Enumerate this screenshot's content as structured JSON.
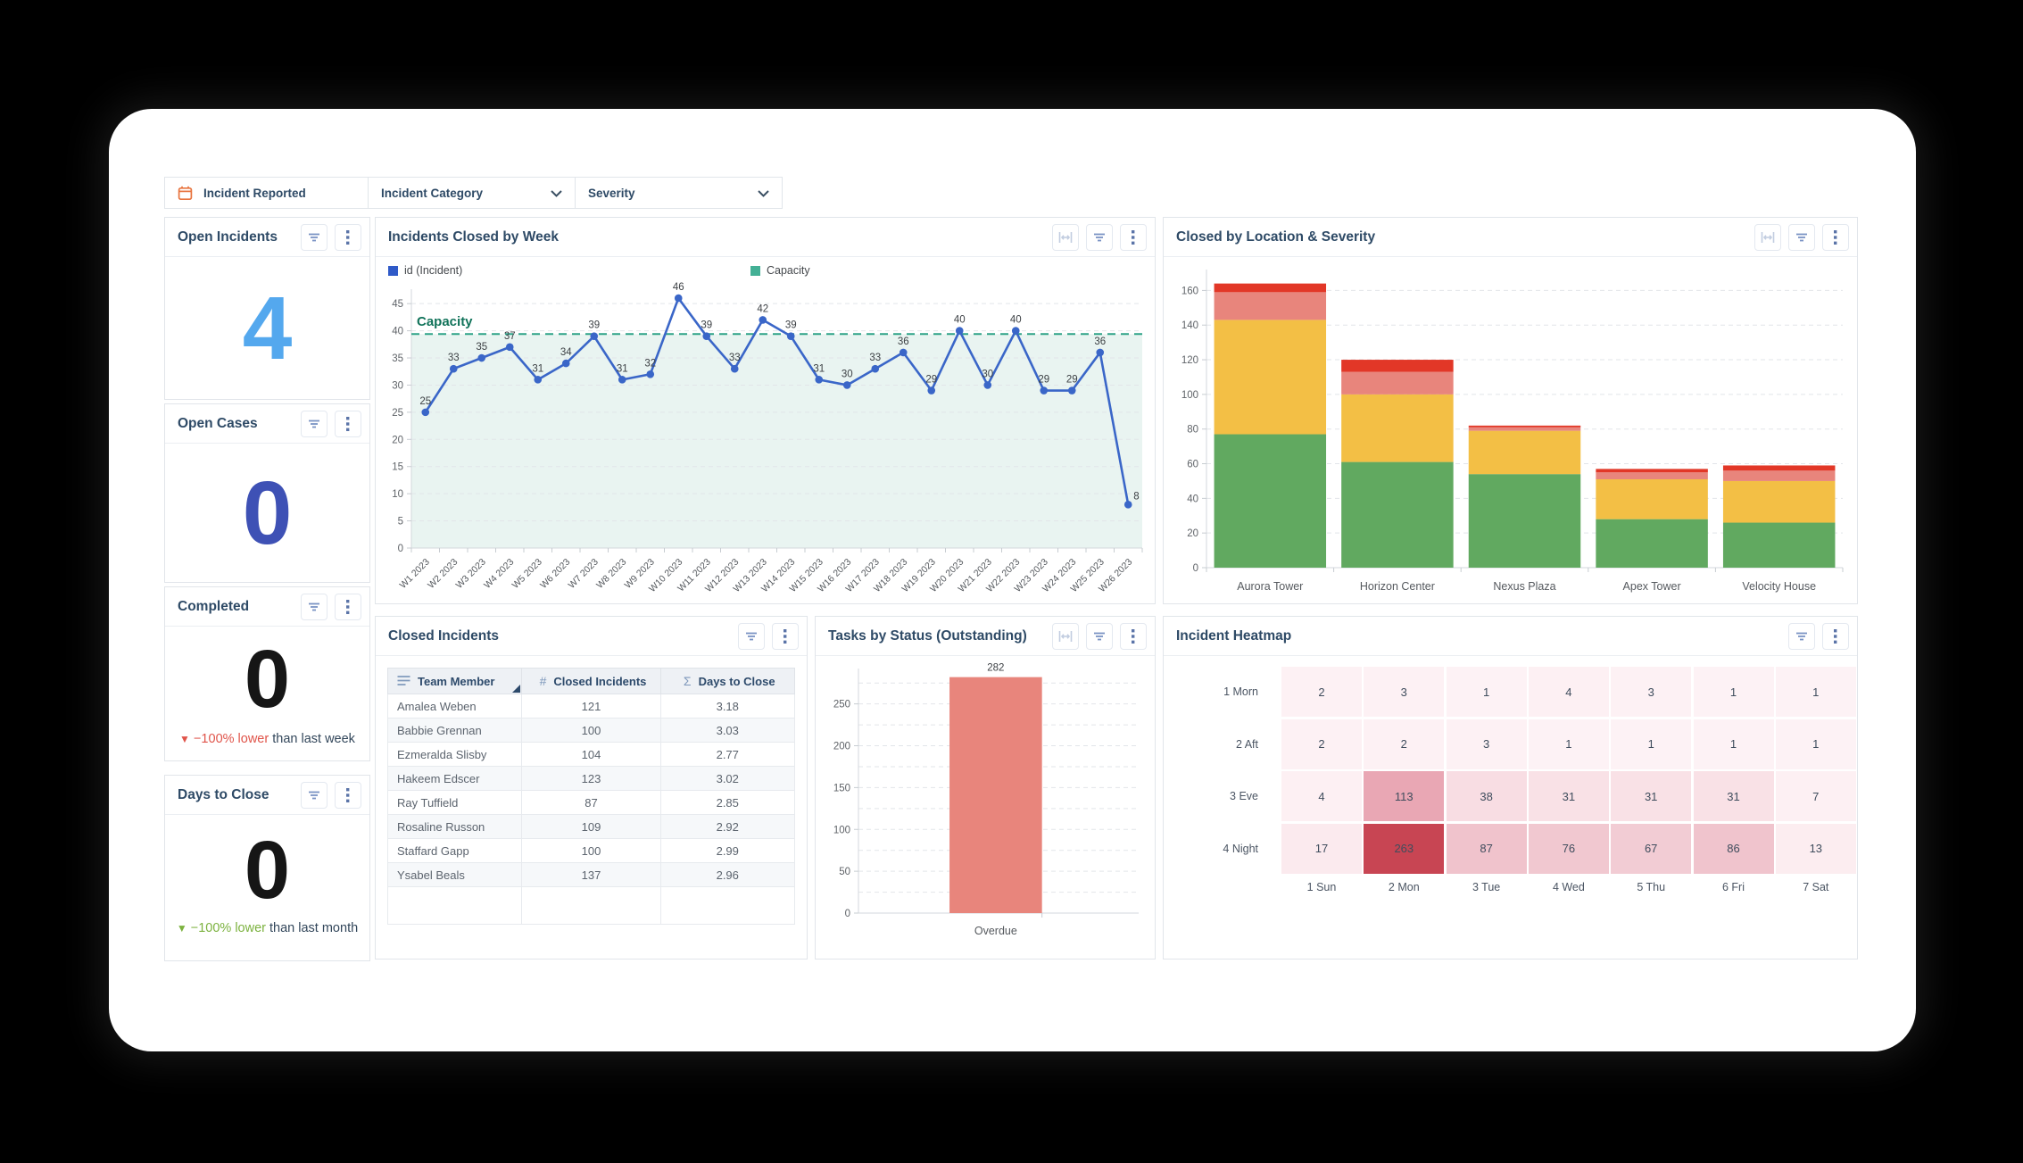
{
  "filters": {
    "incident_reported": "Incident Reported",
    "incident_category": "Incident Category",
    "severity": "Severity"
  },
  "kpis": [
    {
      "title": "Open Incidents",
      "value": "4",
      "value_color": "#54a8ee"
    },
    {
      "title": "Open Cases",
      "value": "0",
      "value_color": "#3e51b5"
    },
    {
      "title": "Completed",
      "value": "0",
      "value_color": "#161616",
      "delta": {
        "arrow": "▼",
        "text": "−100% lower",
        "suffix": "than last week",
        "color": "#e0544a"
      }
    },
    {
      "title": "Days to Close",
      "value": "0",
      "value_color": "#161616",
      "delta": {
        "arrow": "▼",
        "text": "−100% lower",
        "suffix": "than last month",
        "color": "#7cb23f"
      }
    }
  ],
  "chart_data": [
    {
      "id": "incidents_closed_by_week",
      "type": "line",
      "title": "Incidents Closed by Week",
      "categories": [
        "W1 2023",
        "W2 2023",
        "W3 2023",
        "W4 2023",
        "W5 2023",
        "W6 2023",
        "W7 2023",
        "W8 2023",
        "W9 2023",
        "W10 2023",
        "W11 2023",
        "W12 2023",
        "W13 2023",
        "W14 2023",
        "W15 2023",
        "W16 2023",
        "W17 2023",
        "W18 2023",
        "W19 2023",
        "W20 2023",
        "W21 2023",
        "W22 2023",
        "W23 2023",
        "W24 2023",
        "W25 2023",
        "W26 2023"
      ],
      "values": [
        25,
        33,
        35,
        37,
        31,
        34,
        39,
        31,
        32,
        46,
        39,
        33,
        42,
        39,
        31,
        30,
        33,
        36,
        29,
        40,
        30,
        40,
        29,
        29,
        36,
        8
      ],
      "series_name": "id (Incident)",
      "capacity": 39.4,
      "capacity_label": "Capacity",
      "ylim": [
        0,
        45
      ],
      "ytick_step": 5,
      "scale_max": 47,
      "grid": true,
      "legend_position": "top",
      "legend": [
        {
          "label": "id (Incident)",
          "color": "#2f5ac8"
        },
        {
          "label": "Capacity",
          "color": "#43b095"
        }
      ],
      "line_color": "#3a66c8",
      "capacity_color": "#2ea287",
      "capacity_label_color": "#11735a",
      "band_fill": "#e9f4f1"
    },
    {
      "id": "closed_by_location_severity",
      "type": "bar-stacked",
      "title": "Closed by Location & Severity",
      "categories": [
        "Aurora Tower",
        "Horizon Center",
        "Nexus Plaza",
        "Apex Tower",
        "Velocity House"
      ],
      "series": [
        {
          "name": "severity-low",
          "color": "#61a960",
          "values": [
            77,
            61,
            54,
            28,
            26
          ]
        },
        {
          "name": "severity-medium",
          "color": "#f3bf45",
          "values": [
            66,
            39,
            25,
            23,
            24
          ]
        },
        {
          "name": "severity-high",
          "color": "#e8857c",
          "values": [
            16,
            13,
            2,
            4,
            6
          ]
        },
        {
          "name": "severity-critical",
          "color": "#e23727",
          "values": [
            5,
            7,
            1,
            2,
            3
          ]
        }
      ],
      "ylim": [
        0,
        160
      ],
      "ytick_step": 20,
      "scale_max": 170,
      "grid": true
    },
    {
      "id": "tasks_by_status",
      "type": "bar",
      "title": "Tasks by Status (Outstanding)",
      "categories": [
        "Overdue"
      ],
      "values": [
        282
      ],
      "bar_color": "#e8857c",
      "ylim": [
        0,
        250
      ],
      "ytick_step": 50,
      "minor_step": 25,
      "scale_max": 288,
      "grid": true
    },
    {
      "id": "incident_heatmap",
      "type": "heatmap",
      "title": "Incident Heatmap",
      "rows": [
        "1 Morn",
        "2 Aft",
        "3 Eve",
        "4 Night"
      ],
      "cols": [
        "1 Sun",
        "2 Mon",
        "3 Tue",
        "4 Wed",
        "5 Thu",
        "6 Fri",
        "7 Sat"
      ],
      "values": [
        [
          2,
          3,
          1,
          4,
          3,
          1,
          1
        ],
        [
          2,
          2,
          3,
          1,
          1,
          1,
          1
        ],
        [
          4,
          113,
          38,
          31,
          31,
          31,
          7
        ],
        [
          17,
          263,
          87,
          76,
          67,
          86,
          13
        ]
      ],
      "cell_colors": [
        [
          "#fdf1f4",
          "#fdf1f4",
          "#fdf2f5",
          "#fdf0f3",
          "#fdf1f4",
          "#fdf2f5",
          "#fdf2f5"
        ],
        [
          "#fdf1f4",
          "#fdf1f4",
          "#fdf1f4",
          "#fdf2f5",
          "#fdf2f5",
          "#fdf2f5",
          "#fdf2f5"
        ],
        [
          "#fdf0f3",
          "#e9a7b4",
          "#f8dde3",
          "#f9e1e6",
          "#f9e1e6",
          "#f9e1e6",
          "#fdf0f3"
        ],
        [
          "#fbeaee",
          "#c84553",
          "#f0c3cc",
          "#f1c8d0",
          "#f2ccd4",
          "#f0c4cd",
          "#fcedf0"
        ]
      ]
    },
    {
      "id": "closed_incidents",
      "type": "table",
      "title": "Closed Incidents",
      "columns": [
        {
          "label": "Team Member",
          "icon": "text-align-icon",
          "glyph": ""
        },
        {
          "label": "Closed Incidents",
          "icon": "hash-icon",
          "glyph": "#"
        },
        {
          "label": "Days to Close",
          "icon": "sigma-icon",
          "glyph": "Σ"
        }
      ],
      "sorted_column": 0,
      "sort_direction": "asc",
      "rows": [
        [
          "Amalea Weben",
          "121",
          "3.18"
        ],
        [
          "Babbie Grennan",
          "100",
          "3.03"
        ],
        [
          "Ezmeralda Slisby",
          "104",
          "2.77"
        ],
        [
          "Hakeem Edscer",
          "123",
          "3.02"
        ],
        [
          "Ray Tuffield",
          "87",
          "2.85"
        ],
        [
          "Rosaline Russon",
          "109",
          "2.92"
        ],
        [
          "Staffard Gapp",
          "100",
          "2.99"
        ],
        [
          "Ysabel Beals",
          "137",
          "2.96"
        ]
      ],
      "trailing_empty_row": true
    }
  ]
}
